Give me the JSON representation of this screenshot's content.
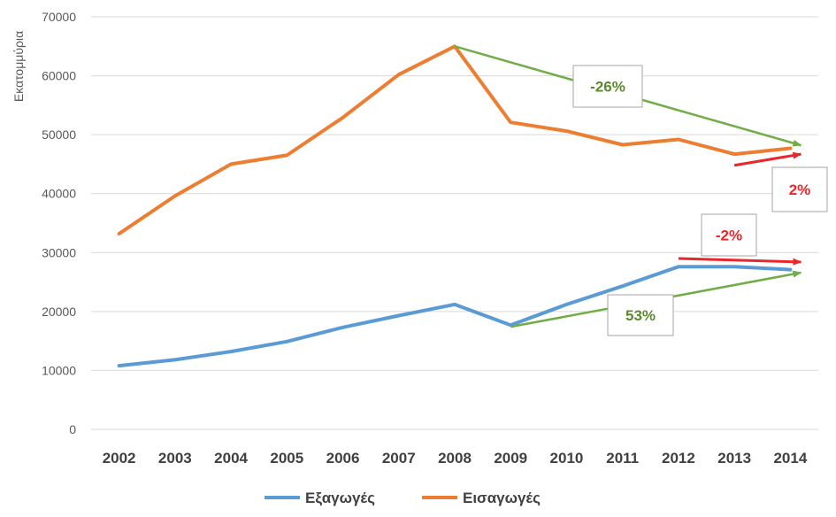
{
  "chart_data": {
    "type": "line",
    "title": "",
    "xlabel": "",
    "ylabel": "Εκατομμύρια",
    "categories": [
      "2002",
      "2003",
      "2004",
      "2005",
      "2006",
      "2007",
      "2008",
      "2009",
      "2010",
      "2011",
      "2012",
      "2013",
      "2014"
    ],
    "ylim": [
      0,
      70000
    ],
    "yticks": [
      "0",
      "10000",
      "20000",
      "30000",
      "40000",
      "50000",
      "60000",
      "70000"
    ],
    "grid": true,
    "legend_position": "bottom",
    "series": [
      {
        "name": "Εξαγωγές",
        "color": "#5b9bd5",
        "values": [
          10800,
          11800,
          13200,
          14900,
          17300,
          19300,
          21200,
          17700,
          21200,
          24300,
          27600,
          27600,
          27100
        ]
      },
      {
        "name": "Εισαγωγές",
        "color": "#ed7d31",
        "values": [
          33200,
          39600,
          45000,
          46500,
          52900,
          60200,
          65000,
          52100,
          50600,
          48300,
          49200,
          46700,
          47700
        ]
      }
    ],
    "annotations": [
      {
        "text": "-26%",
        "color": "#5a8a2d",
        "arrow_color": "#70ad47",
        "from": [
          "2008",
          65000
        ],
        "to": [
          "2014",
          48200
        ]
      },
      {
        "text": "2%",
        "color": "#e8262c",
        "arrow_color": "#e8262c",
        "from": [
          "2013",
          44800
        ],
        "to": [
          "2014",
          46700
        ]
      },
      {
        "text": "-2%",
        "color": "#e8262c",
        "arrow_color": "#e8262c",
        "from": [
          "2012",
          29000
        ],
        "to": [
          "2014",
          28400
        ]
      },
      {
        "text": "53%",
        "color": "#5a8a2d",
        "arrow_color": "#70ad47",
        "from": [
          "2009",
          17400
        ],
        "to": [
          "2014",
          26600
        ]
      }
    ]
  }
}
